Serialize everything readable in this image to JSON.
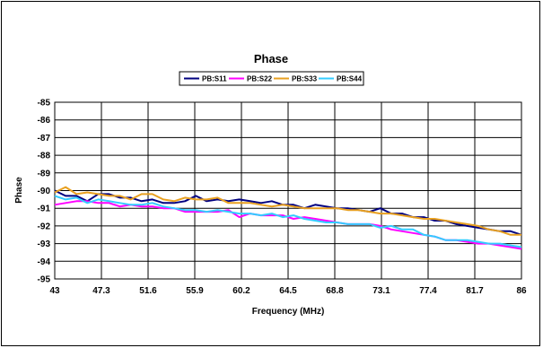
{
  "chart_data": {
    "type": "line",
    "title": "Phase",
    "xlabel": "Frequency (MHz)",
    "ylabel": "Phase",
    "x_tick_labels": [
      "43",
      "47.3",
      "51.6",
      "55.9",
      "60.2",
      "64.5",
      "68.8",
      "73.1",
      "77.4",
      "81.7",
      "86"
    ],
    "y_tick_labels": [
      "-85",
      "-86",
      "-87",
      "-88",
      "-89",
      "-90",
      "-91",
      "-92",
      "-93",
      "-94",
      "-95"
    ],
    "xlim": [
      43,
      86
    ],
    "ylim": [
      -95,
      -85
    ],
    "grid": true,
    "legend_position": "top",
    "series": [
      {
        "name": "PB:S11",
        "color": "#000080",
        "x": [
          43,
          44,
          45,
          46,
          47,
          48,
          49,
          50,
          51,
          52,
          53,
          54,
          55,
          56,
          57,
          58,
          59,
          60,
          61,
          62,
          63,
          64,
          65,
          66,
          67,
          68,
          69,
          70,
          71,
          72,
          73,
          74,
          75,
          76,
          77,
          78,
          79,
          80,
          81,
          82,
          83,
          84,
          85,
          86
        ],
        "y": [
          -90.0,
          -90.3,
          -90.3,
          -90.6,
          -90.2,
          -90.2,
          -90.4,
          -90.4,
          -90.6,
          -90.5,
          -90.7,
          -90.7,
          -90.6,
          -90.3,
          -90.6,
          -90.5,
          -90.6,
          -90.5,
          -90.6,
          -90.7,
          -90.6,
          -90.8,
          -90.8,
          -91.0,
          -90.8,
          -90.9,
          -91.0,
          -91.0,
          -91.1,
          -91.2,
          -91.0,
          -91.3,
          -91.3,
          -91.5,
          -91.5,
          -91.7,
          -91.7,
          -91.9,
          -92.0,
          -92.1,
          -92.2,
          -92.3,
          -92.3,
          -92.5
        ]
      },
      {
        "name": "PB:S22",
        "color": "#ff00ff",
        "x": [
          43,
          44,
          45,
          46,
          47,
          48,
          49,
          50,
          51,
          52,
          53,
          54,
          55,
          56,
          57,
          58,
          59,
          60,
          61,
          62,
          63,
          64,
          65,
          66,
          67,
          68,
          69,
          70,
          71,
          72,
          73,
          74,
          75,
          76,
          77,
          78,
          79,
          80,
          81,
          82,
          83,
          84,
          85,
          86
        ],
        "y": [
          -90.8,
          -90.7,
          -90.6,
          -90.6,
          -90.7,
          -90.7,
          -90.9,
          -90.8,
          -90.9,
          -90.9,
          -91.0,
          -91.0,
          -91.2,
          -91.2,
          -91.2,
          -91.2,
          -91.1,
          -91.5,
          -91.3,
          -91.4,
          -91.4,
          -91.4,
          -91.6,
          -91.5,
          -91.6,
          -91.7,
          -91.8,
          -91.9,
          -91.9,
          -91.9,
          -92.0,
          -92.2,
          -92.3,
          -92.4,
          -92.5,
          -92.6,
          -92.8,
          -92.8,
          -92.9,
          -93.0,
          -93.0,
          -93.1,
          -93.2,
          -93.3
        ]
      },
      {
        "name": "PB:S33",
        "color": "#e8a020",
        "x": [
          43,
          44,
          45,
          46,
          47,
          48,
          49,
          50,
          51,
          52,
          53,
          54,
          55,
          56,
          57,
          58,
          59,
          60,
          61,
          62,
          63,
          64,
          65,
          66,
          67,
          68,
          69,
          70,
          71,
          72,
          73,
          74,
          75,
          76,
          77,
          78,
          79,
          80,
          81,
          82,
          83,
          84,
          85,
          86
        ],
        "y": [
          -90.1,
          -89.8,
          -90.2,
          -90.1,
          -90.2,
          -90.3,
          -90.3,
          -90.5,
          -90.2,
          -90.2,
          -90.5,
          -90.6,
          -90.4,
          -90.5,
          -90.5,
          -90.4,
          -90.7,
          -90.7,
          -90.7,
          -90.8,
          -90.9,
          -90.8,
          -90.9,
          -91.0,
          -91.0,
          -91.0,
          -91.0,
          -91.1,
          -91.1,
          -91.2,
          -91.3,
          -91.3,
          -91.4,
          -91.5,
          -91.6,
          -91.6,
          -91.7,
          -91.8,
          -91.9,
          -92.0,
          -92.2,
          -92.3,
          -92.5,
          -92.5
        ]
      },
      {
        "name": "PB:S44",
        "color": "#33ccff",
        "x": [
          43,
          44,
          45,
          46,
          47,
          48,
          49,
          50,
          51,
          52,
          53,
          54,
          55,
          56,
          57,
          58,
          59,
          60,
          61,
          62,
          63,
          64,
          65,
          66,
          67,
          68,
          69,
          70,
          71,
          72,
          73,
          74,
          75,
          76,
          77,
          78,
          79,
          80,
          81,
          82,
          83,
          84,
          85,
          86
        ],
        "y": [
          -90.3,
          -90.5,
          -90.4,
          -90.7,
          -90.5,
          -90.6,
          -90.7,
          -90.8,
          -90.8,
          -90.7,
          -90.9,
          -91.0,
          -91.1,
          -91.1,
          -91.2,
          -91.1,
          -91.2,
          -91.3,
          -91.3,
          -91.4,
          -91.3,
          -91.5,
          -91.4,
          -91.6,
          -91.7,
          -91.8,
          -91.8,
          -91.9,
          -91.9,
          -91.9,
          -92.1,
          -92.0,
          -92.2,
          -92.2,
          -92.5,
          -92.6,
          -92.8,
          -92.8,
          -92.8,
          -92.9,
          -93.0,
          -93.0,
          -93.1,
          -93.2
        ]
      }
    ]
  }
}
